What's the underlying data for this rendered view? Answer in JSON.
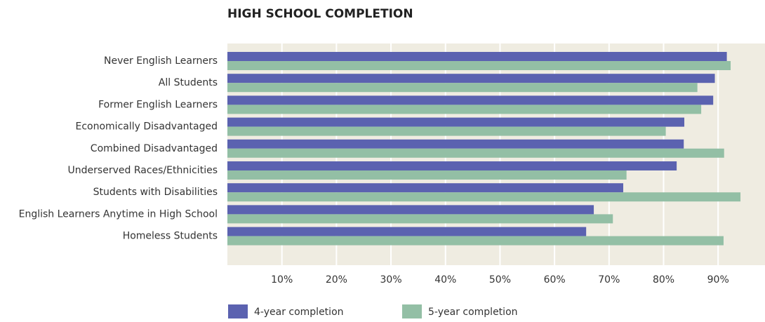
{
  "chart_data": {
    "type": "hbar",
    "title": "HIGH SCHOOL COMPLETION",
    "categories": [
      "Never English Learners",
      "All Students",
      "Former English Learners",
      "Economically Disadvantaged",
      "Combined Disadvantaged",
      "Underserved Races/Ethnicities",
      "Students with Disabilities",
      "English Learners Anytime in High School",
      "Homeless Students"
    ],
    "series": [
      {
        "name": "4-year completion",
        "color": "#5b62b0",
        "values": [
          91.6,
          89.4,
          89.1,
          83.8,
          83.7,
          82.4,
          72.6,
          67.2,
          65.8
        ]
      },
      {
        "name": "5-year completion",
        "color": "#93bfa5",
        "values": [
          92.3,
          86.2,
          86.9,
          80.4,
          91.1,
          73.2,
          94.1,
          70.7,
          91.0
        ]
      }
    ],
    "xlim": [
      0,
      98.6
    ],
    "xticks": [
      {
        "value": 10,
        "label": "10%"
      },
      {
        "value": 20,
        "label": "20%"
      },
      {
        "value": 30,
        "label": "30%"
      },
      {
        "value": 40,
        "label": "40%"
      },
      {
        "value": 50,
        "label": "50%"
      },
      {
        "value": 60,
        "label": "60%"
      },
      {
        "value": 70,
        "label": "70%"
      },
      {
        "value": 80,
        "label": "80%"
      },
      {
        "value": 90,
        "label": "90%"
      }
    ],
    "grid": true
  }
}
